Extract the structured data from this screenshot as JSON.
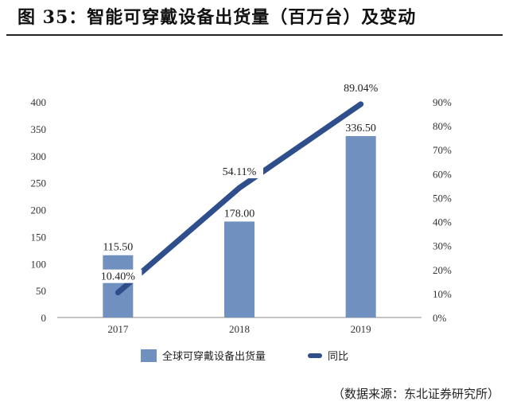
{
  "title": "图 35：智能可穿戴设备出货量（百万台）及变动",
  "source": "（数据来源：东北证券研究所）",
  "colors": {
    "bar": "#7090c0",
    "line": "#2f4f8c",
    "axis": "#888888"
  },
  "chart_data": {
    "type": "bar+line",
    "categories": [
      "2017",
      "2018",
      "2019"
    ],
    "series": [
      {
        "name": "全球可穿戴设备出货量",
        "type": "bar",
        "axis": "left",
        "values": [
          115.5,
          178.0,
          336.5
        ],
        "labels": [
          "115.50",
          "178.00",
          "336.50"
        ]
      },
      {
        "name": "同比",
        "type": "line",
        "axis": "right",
        "values": [
          10.4,
          54.11,
          89.04
        ],
        "labels": [
          "10.40%",
          "54.11%",
          "89.04%"
        ]
      }
    ],
    "ylim_left": [
      0,
      400
    ],
    "yticks_left": [
      "0",
      "50",
      "100",
      "150",
      "200",
      "250",
      "300",
      "350",
      "400"
    ],
    "ylim_right": [
      0,
      90
    ],
    "yticks_right": [
      "0%",
      "10%",
      "20%",
      "30%",
      "40%",
      "50%",
      "60%",
      "70%",
      "80%",
      "90%"
    ],
    "grid": false,
    "legend": "bottom"
  }
}
